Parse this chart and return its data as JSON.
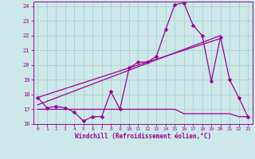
{
  "xlabel": "Windchill (Refroidissement éolien,°C)",
  "bg_color": "#cde8e8",
  "line_color": "#990099",
  "grid_color": "#a8cccc",
  "xlim": [
    -0.5,
    23.5
  ],
  "ylim": [
    16.0,
    24.3
  ],
  "yticks": [
    16,
    17,
    18,
    19,
    20,
    21,
    22,
    23,
    24
  ],
  "xticks": [
    0,
    1,
    2,
    3,
    4,
    5,
    6,
    7,
    8,
    9,
    10,
    11,
    12,
    13,
    14,
    15,
    16,
    17,
    18,
    19,
    20,
    21,
    22,
    23
  ],
  "series1_x": [
    0,
    1,
    2,
    3,
    4,
    5,
    6,
    7,
    8,
    9,
    10,
    11,
    12,
    13,
    14,
    15,
    16,
    17,
    18,
    19,
    20,
    21,
    22,
    23
  ],
  "series1_y": [
    17.8,
    17.1,
    17.2,
    17.1,
    16.8,
    16.2,
    16.5,
    16.5,
    18.2,
    17.0,
    19.8,
    20.2,
    20.2,
    20.6,
    22.4,
    24.1,
    24.2,
    22.7,
    22.0,
    18.9,
    21.9,
    19.0,
    17.8,
    16.5
  ],
  "series2_x": [
    0,
    1,
    2,
    3,
    4,
    5,
    6,
    7,
    8,
    9,
    10,
    11,
    12,
    13,
    14,
    15,
    16,
    17,
    18,
    19,
    20,
    21,
    22,
    23
  ],
  "series2_y": [
    17.0,
    17.0,
    17.0,
    17.0,
    17.0,
    17.0,
    17.0,
    17.0,
    17.0,
    17.0,
    17.0,
    17.0,
    17.0,
    17.0,
    17.0,
    17.0,
    16.7,
    16.7,
    16.7,
    16.7,
    16.7,
    16.7,
    16.5,
    16.5
  ],
  "series3_x": [
    0,
    20
  ],
  "series3_y": [
    17.3,
    22.0
  ],
  "series4_x": [
    0,
    20
  ],
  "series4_y": [
    17.8,
    21.8
  ],
  "marker_size": 2.5,
  "line_width": 0.9
}
